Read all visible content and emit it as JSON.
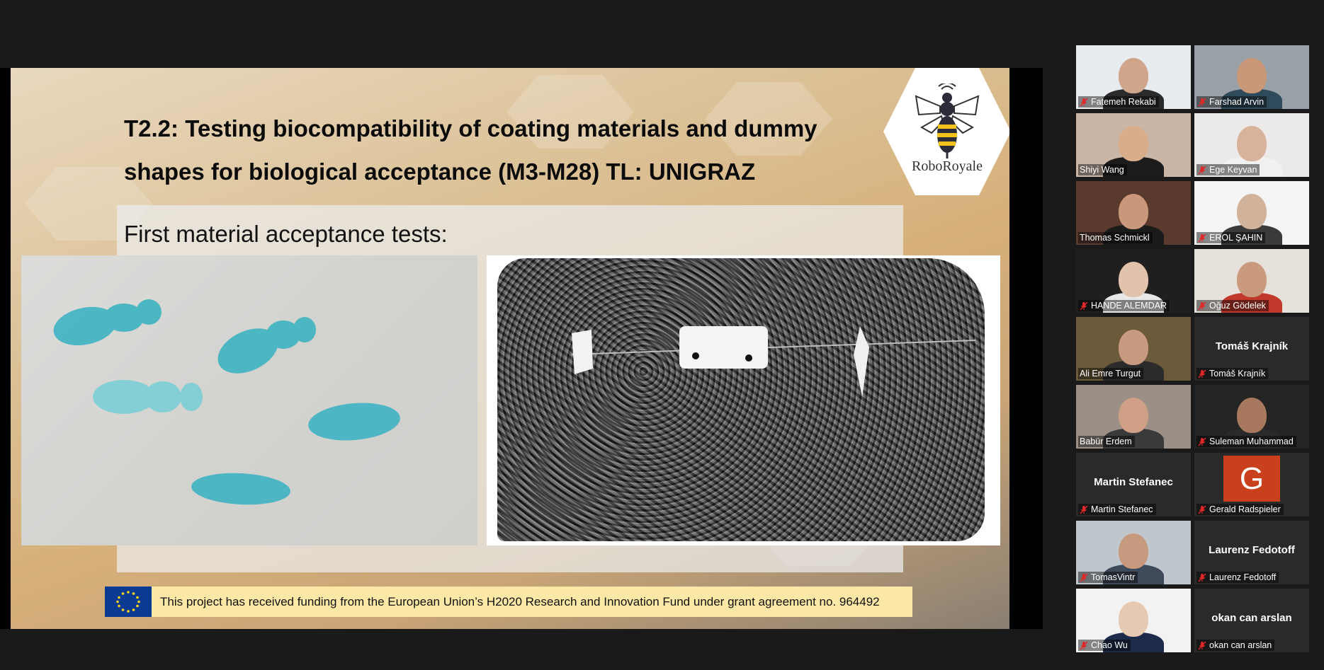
{
  "slide": {
    "title": "T2.2: Testing biocompatibility of coating materials and dummy shapes for biological acceptance (M3-M28) TL: UNIGRAZ",
    "subtitle": "First material acceptance tests:",
    "logo_text": "RoboRoyale",
    "funding_text": "This project has received funding from the European Union’s H2020 Research and Innovation Fund under grant agreement no. 964492"
  },
  "participants": [
    {
      "name": "Fatemeh Rekabi",
      "muted": true,
      "video": true
    },
    {
      "name": "Farshad Arvin",
      "muted": true,
      "video": true
    },
    {
      "name": "Shiyi Wang",
      "muted": false,
      "video": true
    },
    {
      "name": "Ege Keyvan",
      "muted": true,
      "video": true
    },
    {
      "name": "Thomas Schmickl",
      "muted": false,
      "video": true,
      "active_speaker": true
    },
    {
      "name": "EROL ŞAHIN",
      "muted": true,
      "video": true
    },
    {
      "name": "HANDE ALEMDAR",
      "muted": true,
      "video": true
    },
    {
      "name": "Oğuz Gödelek",
      "muted": true,
      "video": true
    },
    {
      "name": "Ali Emre Turgut",
      "muted": false,
      "video": true
    },
    {
      "name": "Tomáš Krajník",
      "muted": true,
      "video": false,
      "display_name": "Tomáš Krajník"
    },
    {
      "name": "Babür Erdem",
      "muted": false,
      "video": true
    },
    {
      "name": "Suleman Muhammad",
      "muted": true,
      "video": true
    },
    {
      "name": "Martin Stefanec",
      "muted": true,
      "video": false,
      "display_name": "Martin Stefanec"
    },
    {
      "name": "Gerald Radspieler",
      "muted": true,
      "video": false,
      "avatar_letter": "G"
    },
    {
      "name": "TomasVintr",
      "muted": true,
      "video": true
    },
    {
      "name": "Laurenz Fedotoff",
      "muted": true,
      "video": false,
      "display_name": "Laurenz Fedotoff"
    },
    {
      "name": "Chao Wu",
      "muted": true,
      "video": true
    },
    {
      "name": "okan can arslan",
      "muted": true,
      "video": false,
      "display_name": "okan can arslan"
    }
  ],
  "colors": {
    "active_speaker_border": "#f4f082",
    "mic_muted": "#e02828",
    "eu_blue": "#0b3a93"
  }
}
